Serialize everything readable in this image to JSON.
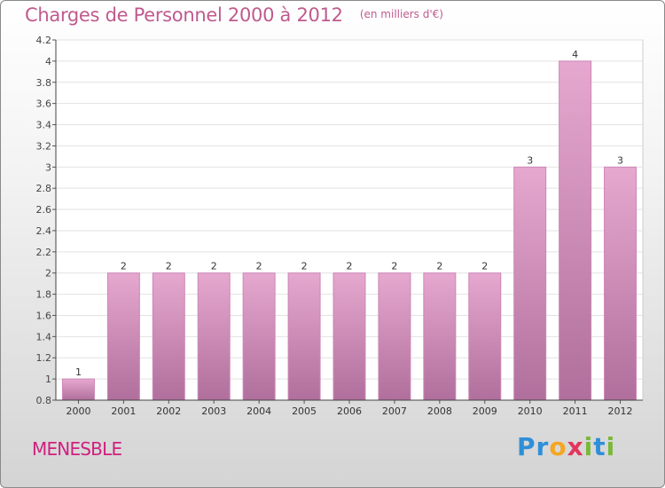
{
  "header": {
    "title": "Charges de Personnel 2000 à 2012",
    "subtitle": "(en milliers d'€)"
  },
  "footer": {
    "town": "MENESBLE",
    "logo": "Proxiti",
    "logo_letters": [
      "P",
      "r",
      "o",
      "x",
      "i",
      "t",
      "i"
    ],
    "logo_colors": [
      "#2f8fd8",
      "#2f8fd8",
      "#f5a623",
      "#e2365c",
      "#7ab83a",
      "#2f8fd8",
      "#7ab83a"
    ]
  },
  "chart_data": {
    "type": "bar",
    "categories": [
      "2000",
      "2001",
      "2002",
      "2003",
      "2004",
      "2005",
      "2006",
      "2007",
      "2008",
      "2009",
      "2010",
      "2011",
      "2012"
    ],
    "values": [
      1,
      2,
      2,
      2,
      2,
      2,
      2,
      2,
      2,
      2,
      3,
      4,
      3
    ],
    "data_labels": [
      "1",
      "2",
      "2",
      "2",
      "2",
      "2",
      "2",
      "2",
      "2",
      "2",
      "3",
      "4",
      "3"
    ],
    "yticks": [
      0.8,
      1,
      1.2,
      1.4,
      1.6,
      1.8,
      2,
      2.2,
      2.4,
      2.6,
      2.8,
      3,
      3.2,
      3.4,
      3.6,
      3.8,
      4,
      4.2
    ],
    "ytick_labels": [
      "0.8",
      "1",
      "1.2",
      "1.4",
      "1.6",
      "1.8",
      "2",
      "2.2",
      "2.4",
      "2.6",
      "2.8",
      "3",
      "3.2",
      "3.4",
      "3.6",
      "3.8",
      "4",
      "4.2"
    ],
    "ylim": [
      0.8,
      4.2
    ],
    "grid": true,
    "colors": {
      "bar_top": "#e6a8cf",
      "bar_bottom": "#b06f9c",
      "bar_edge": "#cc88b6"
    }
  }
}
